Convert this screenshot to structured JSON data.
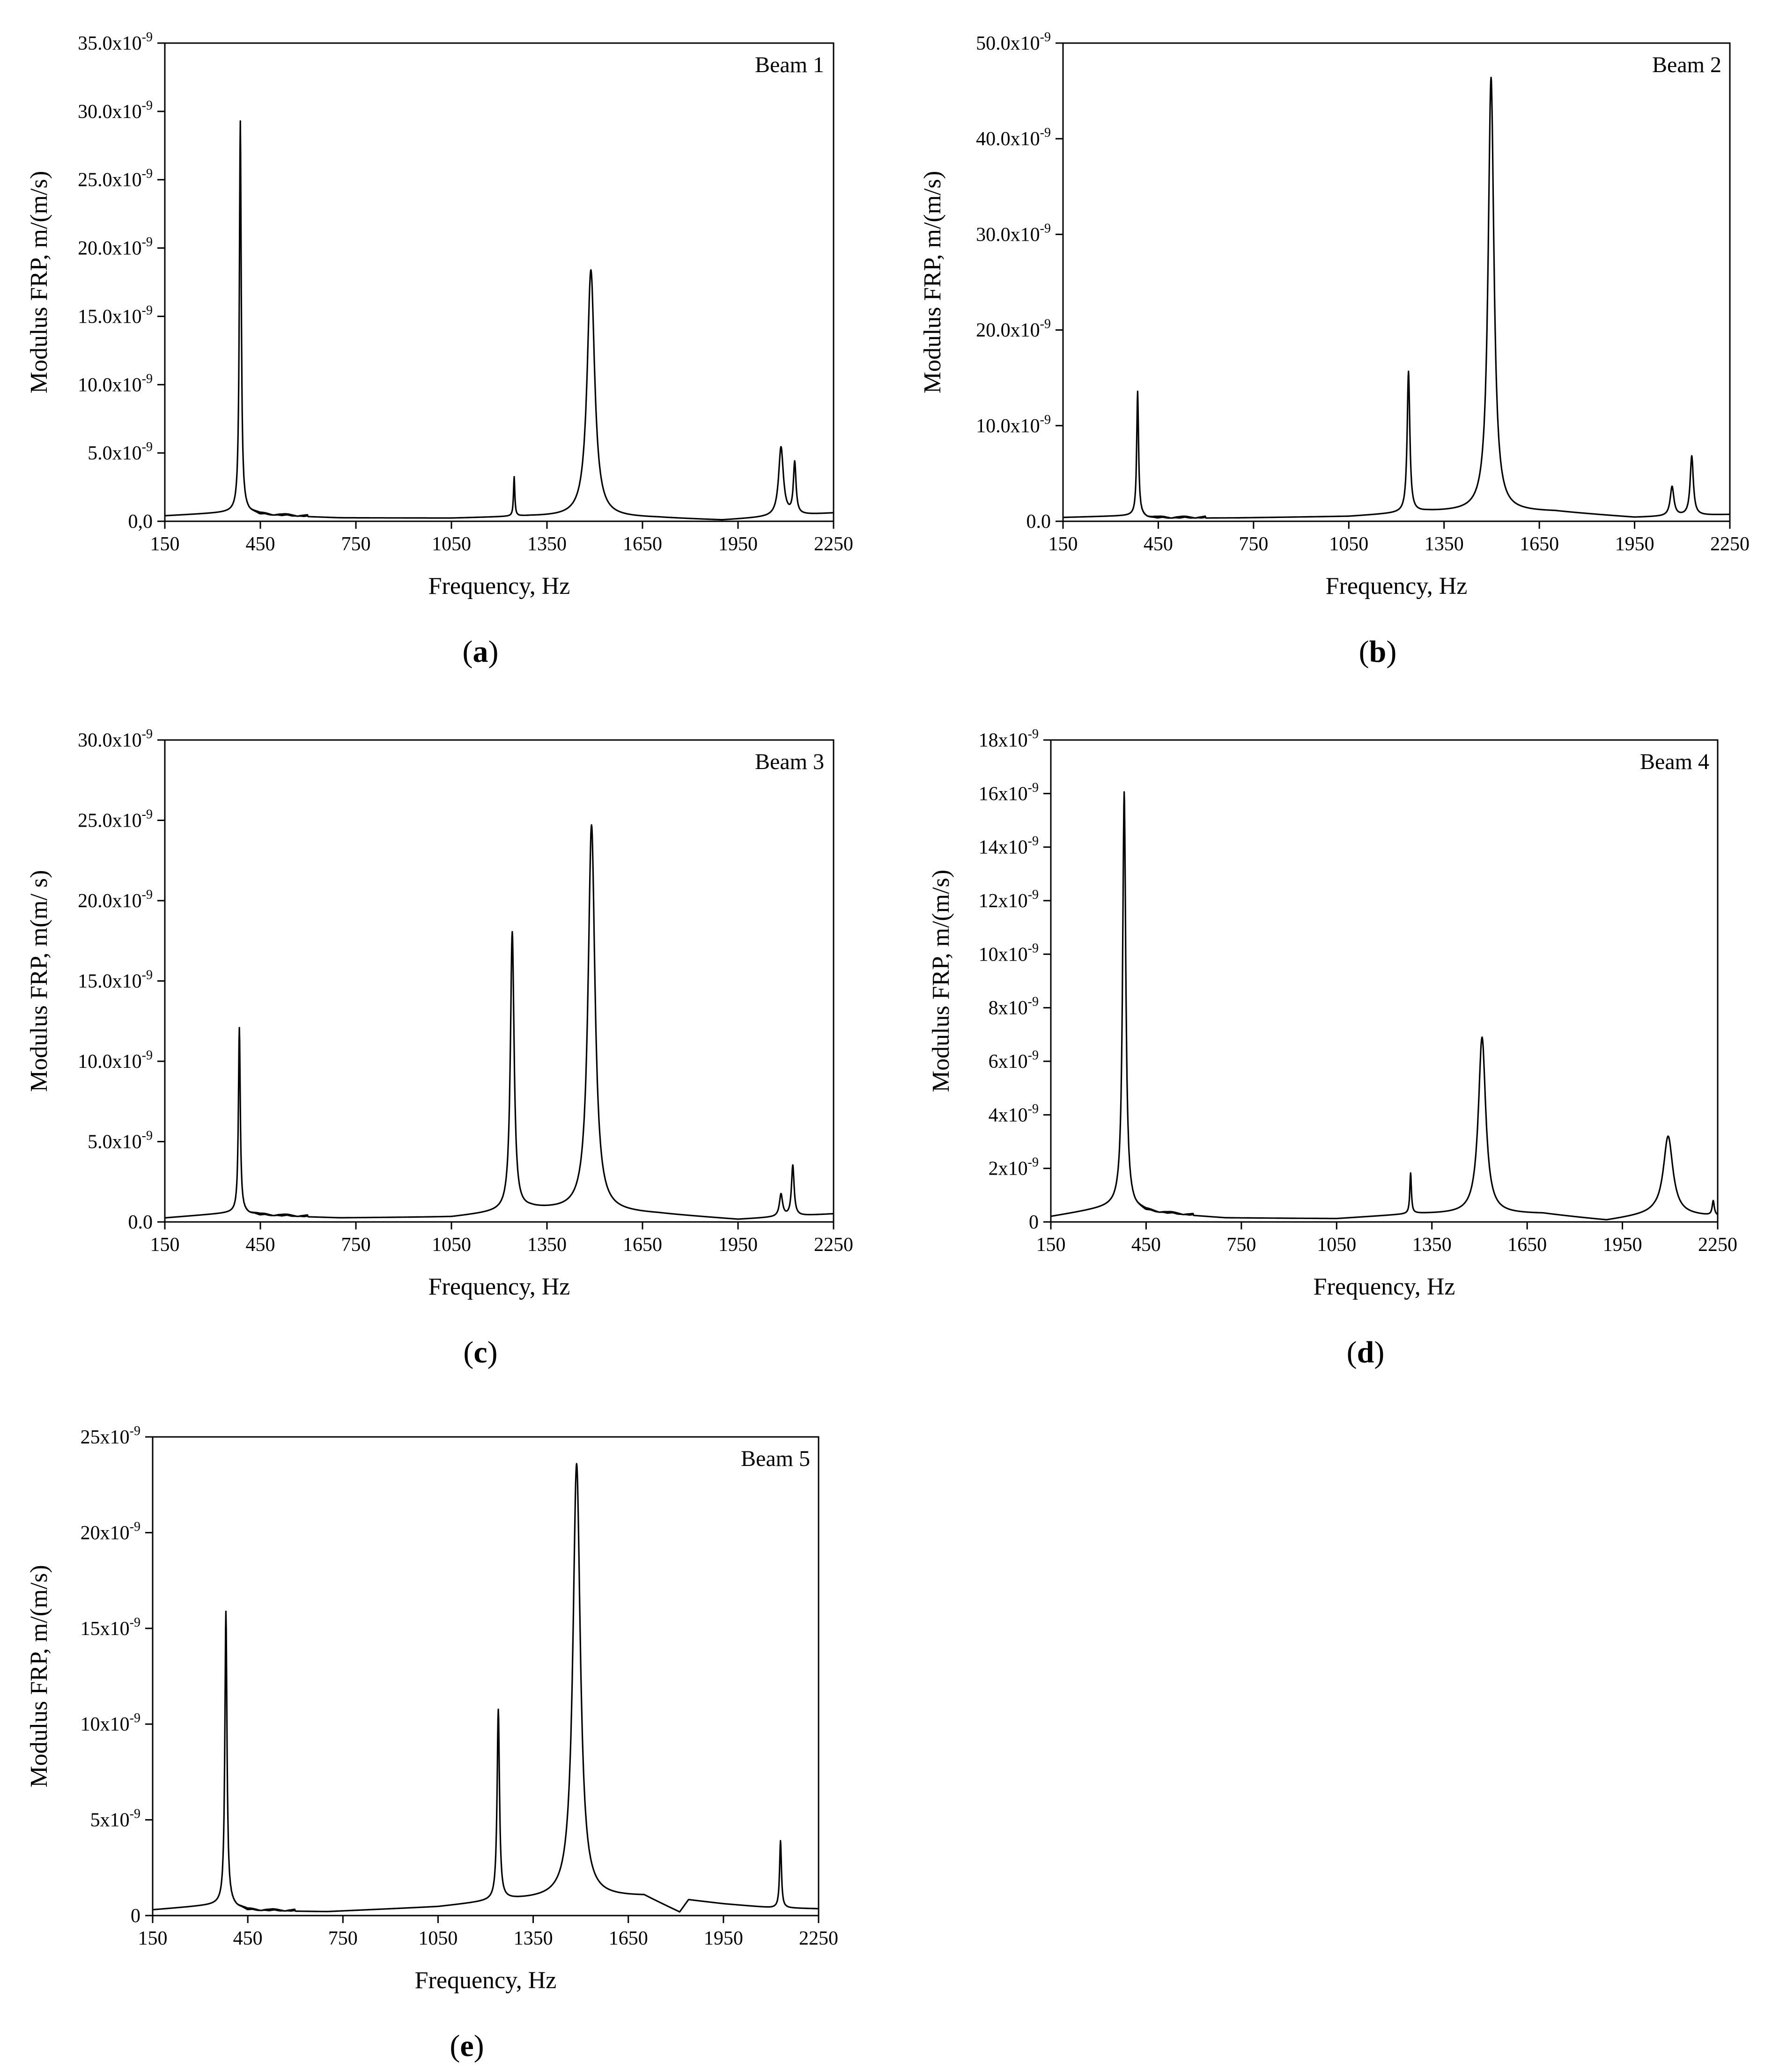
{
  "figure": {
    "panels": [
      "a",
      "b",
      "c",
      "d",
      "e"
    ]
  },
  "chart_data": [
    {
      "id": "a",
      "type": "line",
      "panel_label": "a",
      "legend": "Beam 1",
      "xlabel": "Frequency, Hz",
      "ylabel": "Modulus FRP, m/(m/s)",
      "xlim": [
        150,
        2250
      ],
      "ylim": [
        0,
        3.5e-08
      ],
      "x_ticks": [
        150,
        450,
        750,
        1050,
        1350,
        1650,
        1950,
        2250
      ],
      "x_tick_labels": [
        "150",
        "450",
        "750",
        "1050",
        "1350",
        "1650",
        "1950",
        "2250"
      ],
      "y_ticks": [
        0,
        5e-09,
        1e-08,
        1.5e-08,
        2e-08,
        2.5e-08,
        3e-08,
        3.5e-08
      ],
      "y_tick_labels": [
        {
          "m": "0,0",
          "e": ""
        },
        {
          "m": "5.0x10",
          "e": "-9"
        },
        {
          "m": "10.0x10",
          "e": "-9"
        },
        {
          "m": "15.0x10",
          "e": "-9"
        },
        {
          "m": "20.0x10",
          "e": "-9"
        },
        {
          "m": "25.0x10",
          "e": "-9"
        },
        {
          "m": "30.0x10",
          "e": "-9"
        },
        {
          "m": "35.0x10",
          "e": "-9"
        }
      ],
      "baseline": [
        [
          150,
          4e-10
        ],
        [
          400,
          7e-10
        ],
        [
          450,
          4.5e-10
        ],
        [
          700,
          2.5e-10
        ],
        [
          1050,
          2.2e-10
        ],
        [
          1300,
          3.5e-10
        ],
        [
          1700,
          2.5e-10
        ],
        [
          1900,
          8e-11
        ],
        [
          2050,
          3e-10
        ],
        [
          2250,
          6e-10
        ]
      ],
      "peaks": [
        {
          "x": 387,
          "y": 2.92e-08,
          "width": 3.5
        },
        {
          "x": 1247,
          "y": 3.2e-09,
          "width": 2.5
        },
        {
          "x": 1488,
          "y": 1.84e-08,
          "width": 14
        },
        {
          "x": 2085,
          "y": 5.4e-09,
          "width": 9
        },
        {
          "x": 2128,
          "y": 4.2e-09,
          "width": 5
        }
      ]
    },
    {
      "id": "b",
      "type": "line",
      "panel_label": "b",
      "legend": "Beam 2",
      "xlabel": "Frequency, Hz",
      "ylabel": "Modulus FRP, m/(m/s)",
      "xlim": [
        150,
        2250
      ],
      "ylim": [
        0,
        5e-08
      ],
      "x_ticks": [
        150,
        450,
        750,
        1050,
        1350,
        1650,
        1950,
        2250
      ],
      "x_tick_labels": [
        "150",
        "450",
        "750",
        "1050",
        "1350",
        "1650",
        "1950",
        "2250"
      ],
      "y_ticks": [
        0,
        1e-08,
        2e-08,
        3e-08,
        4e-08,
        5e-08
      ],
      "y_tick_labels": [
        {
          "m": "0.0",
          "e": ""
        },
        {
          "m": "10.0x10",
          "e": "-9"
        },
        {
          "m": "20.0x10",
          "e": "-9"
        },
        {
          "m": "30.0x10",
          "e": "-9"
        },
        {
          "m": "40.0x10",
          "e": "-9"
        },
        {
          "m": "50.0x10",
          "e": "-9"
        }
      ],
      "baseline": [
        [
          150,
          4e-10
        ],
        [
          380,
          6e-10
        ],
        [
          430,
          3e-10
        ],
        [
          700,
          3.5e-10
        ],
        [
          1050,
          5e-10
        ],
        [
          1300,
          1e-09
        ],
        [
          1700,
          1e-09
        ],
        [
          1950,
          4e-10
        ],
        [
          2250,
          7e-10
        ]
      ],
      "peaks": [
        {
          "x": 385,
          "y": 1.34e-08,
          "width": 3.5
        },
        {
          "x": 1238,
          "y": 1.56e-08,
          "width": 5
        },
        {
          "x": 1498,
          "y": 4.64e-08,
          "width": 11
        },
        {
          "x": 2068,
          "y": 3.6e-09,
          "width": 7
        },
        {
          "x": 2130,
          "y": 6.8e-09,
          "width": 6
        }
      ]
    },
    {
      "id": "c",
      "type": "line",
      "panel_label": "c",
      "legend": "Beam 3",
      "xlabel": "Frequency, Hz",
      "ylabel": "Modulus FRP, m(m/ s)",
      "xlim": [
        150,
        2250
      ],
      "ylim": [
        0,
        3e-08
      ],
      "x_ticks": [
        150,
        450,
        750,
        1050,
        1350,
        1650,
        1950,
        2250
      ],
      "x_tick_labels": [
        "150",
        "450",
        "750",
        "1050",
        "1350",
        "1650",
        "1950",
        "2250"
      ],
      "y_ticks": [
        0,
        5e-09,
        1e-08,
        1.5e-08,
        2e-08,
        2.5e-08,
        3e-08
      ],
      "y_tick_labels": [
        {
          "m": "0.0",
          "e": ""
        },
        {
          "m": "5.0x10",
          "e": "-9"
        },
        {
          "m": "10.0x10",
          "e": "-9"
        },
        {
          "m": "15.0x10",
          "e": "-9"
        },
        {
          "m": "20.0x10",
          "e": "-9"
        },
        {
          "m": "25.0x10",
          "e": "-9"
        },
        {
          "m": "30.0x10",
          "e": "-9"
        }
      ],
      "baseline": [
        [
          150,
          2.5e-10
        ],
        [
          380,
          6e-10
        ],
        [
          450,
          4e-10
        ],
        [
          700,
          2.5e-10
        ],
        [
          1050,
          3e-10
        ],
        [
          1300,
          8e-10
        ],
        [
          1700,
          5e-10
        ],
        [
          1950,
          1.5e-10
        ],
        [
          2250,
          5e-10
        ]
      ],
      "peaks": [
        {
          "x": 384,
          "y": 1.2e-08,
          "width": 3.5
        },
        {
          "x": 1241,
          "y": 1.8e-08,
          "width": 7
        },
        {
          "x": 1490,
          "y": 2.47e-08,
          "width": 13
        },
        {
          "x": 2085,
          "y": 1.7e-09,
          "width": 6
        },
        {
          "x": 2122,
          "y": 3.5e-09,
          "width": 5
        }
      ]
    },
    {
      "id": "d",
      "type": "line",
      "panel_label": "d",
      "legend": "Beam 4",
      "xlabel": "Frequency, Hz",
      "ylabel": "Modulus FRP, m/(m/s)",
      "xlim": [
        150,
        2250
      ],
      "ylim": [
        0,
        1.8e-08
      ],
      "x_ticks": [
        150,
        450,
        750,
        1050,
        1350,
        1650,
        1950,
        2250
      ],
      "x_tick_labels": [
        "150",
        "450",
        "750",
        "1050",
        "1350",
        "1650",
        "1950",
        "2250"
      ],
      "y_ticks": [
        0,
        2e-09,
        4e-09,
        6e-09,
        8e-09,
        1e-08,
        1.2e-08,
        1.4e-08,
        1.6e-08,
        1.8e-08
      ],
      "y_tick_labels": [
        {
          "m": "0",
          "e": ""
        },
        {
          "m": "2x10",
          "e": "-9"
        },
        {
          "m": "4x10",
          "e": "-9"
        },
        {
          "m": "6x10",
          "e": "-9"
        },
        {
          "m": "8x10",
          "e": "-9"
        },
        {
          "m": "10x10",
          "e": "-9"
        },
        {
          "m": "12x10",
          "e": "-9"
        },
        {
          "m": "14x10",
          "e": "-9"
        },
        {
          "m": "16x10",
          "e": "-9"
        },
        {
          "m": "18x10",
          "e": "-9"
        }
      ],
      "baseline": [
        [
          150,
          2e-10
        ],
        [
          360,
          6e-10
        ],
        [
          450,
          3.5e-10
        ],
        [
          700,
          1.5e-10
        ],
        [
          1050,
          1.2e-10
        ],
        [
          1300,
          3e-10
        ],
        [
          1700,
          3e-10
        ],
        [
          1900,
          5e-11
        ],
        [
          2050,
          3e-10
        ],
        [
          2250,
          2e-10
        ]
      ],
      "peaks": [
        {
          "x": 381,
          "y": 1.6e-08,
          "width": 6
        },
        {
          "x": 1283,
          "y": 1.8e-09,
          "width": 3
        },
        {
          "x": 1508,
          "y": 6.9e-09,
          "width": 14
        },
        {
          "x": 2094,
          "y": 3.2e-09,
          "width": 18
        },
        {
          "x": 2236,
          "y": 7.5e-10,
          "width": 4
        }
      ]
    },
    {
      "id": "e",
      "type": "line",
      "panel_label": "e",
      "legend": "Beam 5",
      "xlabel": "Frequency, Hz",
      "ylabel": "Modulus FRP, m/(m/s)",
      "xlim": [
        150,
        2250
      ],
      "ylim": [
        0,
        2.5e-08
      ],
      "x_ticks": [
        150,
        450,
        750,
        1050,
        1350,
        1650,
        1950,
        2250
      ],
      "x_tick_labels": [
        "150",
        "450",
        "750",
        "1050",
        "1350",
        "1650",
        "1950",
        "2250"
      ],
      "y_ticks": [
        0,
        5e-09,
        1e-08,
        1.5e-08,
        2e-08,
        2.5e-08
      ],
      "y_tick_labels": [
        {
          "m": "0",
          "e": ""
        },
        {
          "m": "5x10",
          "e": "-9"
        },
        {
          "m": "10x10",
          "e": "-9"
        },
        {
          "m": "15x10",
          "e": "-9"
        },
        {
          "m": "20x10",
          "e": "-9"
        },
        {
          "m": "25x10",
          "e": "-9"
        }
      ],
      "baseline": [
        [
          150,
          3e-10
        ],
        [
          380,
          6e-10
        ],
        [
          450,
          2.5e-10
        ],
        [
          700,
          2e-10
        ],
        [
          1050,
          4.5e-10
        ],
        [
          1260,
          8e-10
        ],
        [
          1700,
          1e-09
        ],
        [
          1812,
          1.5e-10
        ],
        [
          1840,
          8e-10
        ],
        [
          1950,
          6e-10
        ],
        [
          2100,
          4e-10
        ],
        [
          2250,
          3.5e-10
        ]
      ],
      "peaks": [
        {
          "x": 381,
          "y": 1.58e-08,
          "width": 4
        },
        {
          "x": 1240,
          "y": 1.07e-08,
          "width": 4.5
        },
        {
          "x": 1487,
          "y": 2.36e-08,
          "width": 14
        },
        {
          "x": 2130,
          "y": 3.9e-09,
          "width": 3.5
        }
      ]
    }
  ]
}
